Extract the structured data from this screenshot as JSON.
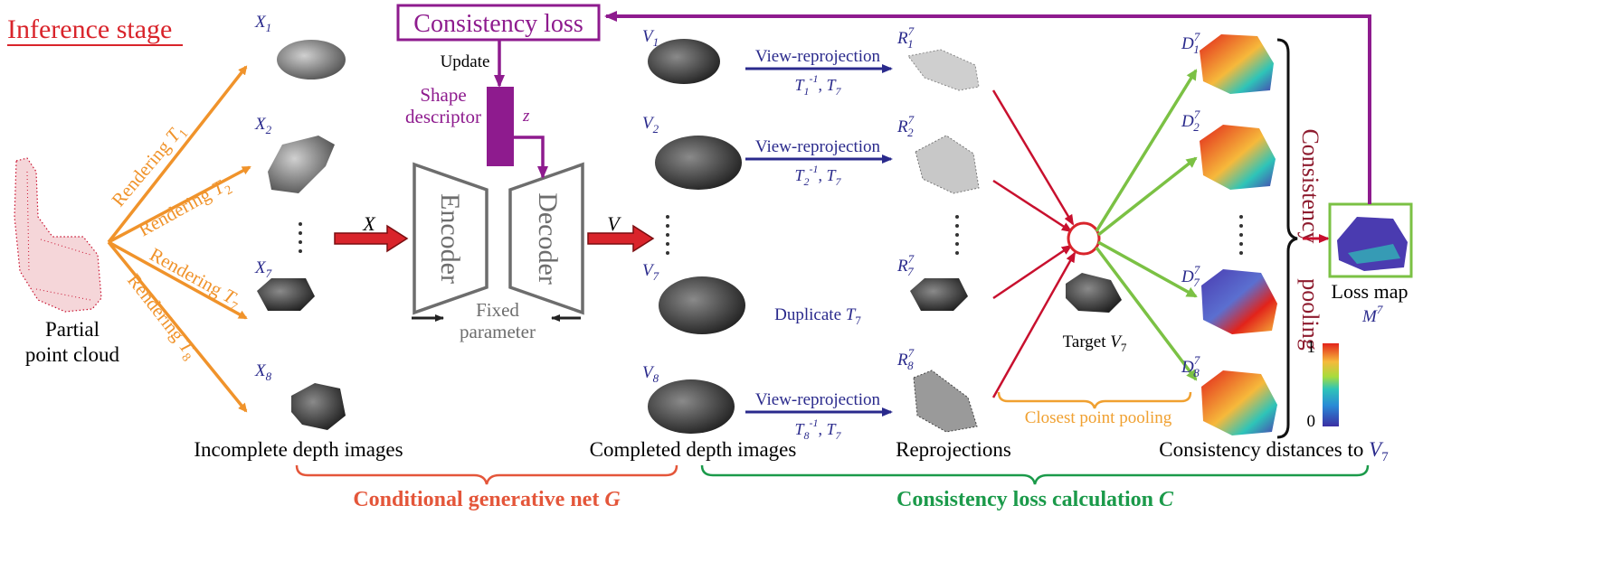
{
  "stage_title": "Inference stage",
  "input_label_line1": "Partial",
  "input_label_line2": "point cloud",
  "rendering": [
    {
      "label": "Rendering",
      "sym": "T",
      "sub": "1"
    },
    {
      "label": "Rendering",
      "sym": "T",
      "sub": "2"
    },
    {
      "label": "Rendering",
      "sym": "T",
      "sub": "7"
    },
    {
      "label": "Rendering",
      "sym": "T",
      "sub": "8"
    }
  ],
  "incomplete": [
    {
      "sym": "X",
      "sub": "1"
    },
    {
      "sym": "X",
      "sub": "2"
    },
    {
      "sym": "X",
      "sub": "7"
    },
    {
      "sym": "X",
      "sub": "8"
    }
  ],
  "incomplete_caption": "Incomplete depth images",
  "x_arrow_label": "X",
  "encoder_label": "Encoder",
  "decoder_label": "Decoder",
  "fixed_line1": "Fixed",
  "fixed_line2": "parameter",
  "shape_desc_line1": "Shape",
  "shape_desc_line2": "descriptor",
  "z_label": "z",
  "update_label": "Update",
  "consistency_loss": "Consistency loss",
  "v_arrow_label": "V",
  "completed": [
    {
      "sym": "V",
      "sub": "1"
    },
    {
      "sym": "V",
      "sub": "2"
    },
    {
      "sym": "V",
      "sub": "7"
    },
    {
      "sym": "V",
      "sub": "8"
    }
  ],
  "completed_caption": "Completed depth images",
  "view_reproj_label": "View-reprojection",
  "reproj_transforms": [
    {
      "a": "T",
      "asub": "1",
      "asup": "-1",
      "b": "T",
      "bsub": "7"
    },
    {
      "a": "T",
      "asub": "2",
      "asup": "-1",
      "b": "T",
      "bsub": "7"
    },
    {
      "a": "T",
      "asub": "8",
      "asup": "-1",
      "b": "T",
      "bsub": "7"
    }
  ],
  "duplicate_label": "Duplicate",
  "duplicate_sym": "T",
  "duplicate_sub": "7",
  "reprojections": [
    {
      "sym": "R",
      "sub": "1",
      "sup": "7"
    },
    {
      "sym": "R",
      "sub": "2",
      "sup": "7"
    },
    {
      "sym": "R",
      "sub": "7",
      "sup": "7"
    },
    {
      "sym": "R",
      "sub": "8",
      "sup": "7"
    }
  ],
  "reproj_caption": "Reprojections",
  "target_label": "Target",
  "target_sym": "V",
  "target_sub": "7",
  "closest_pool": "Closest point pooling",
  "distances": [
    {
      "sym": "D",
      "sub": "1",
      "sup": "7"
    },
    {
      "sym": "D",
      "sub": "2",
      "sup": "7"
    },
    {
      "sym": "D",
      "sub": "7",
      "sup": "7"
    },
    {
      "sym": "D",
      "sub": "8",
      "sup": "7"
    }
  ],
  "distances_caption": "Consistency distances to",
  "distances_caption_sym": "V",
  "distances_caption_sub": "7",
  "pooling_line1": "Consistency",
  "pooling_line2": "pooling",
  "loss_map_label": "Loss map",
  "loss_map_sym": "M",
  "loss_map_sup": "7",
  "colorbar_max": "1",
  "colorbar_min": "0",
  "gen_net_label": "Conditional generative net",
  "gen_net_sym": "G",
  "loss_calc_label": "Consistency loss calculation",
  "loss_calc_sym": "C",
  "colors": {
    "red": "#d9242b",
    "orange": "#f0932b",
    "purple": "#8e1b8e",
    "navy": "#2a2a8c",
    "green": "#7bc144",
    "darkgreen": "#1b9a4a",
    "gray": "#6d6d6d",
    "orange_text": "#f0a030"
  }
}
